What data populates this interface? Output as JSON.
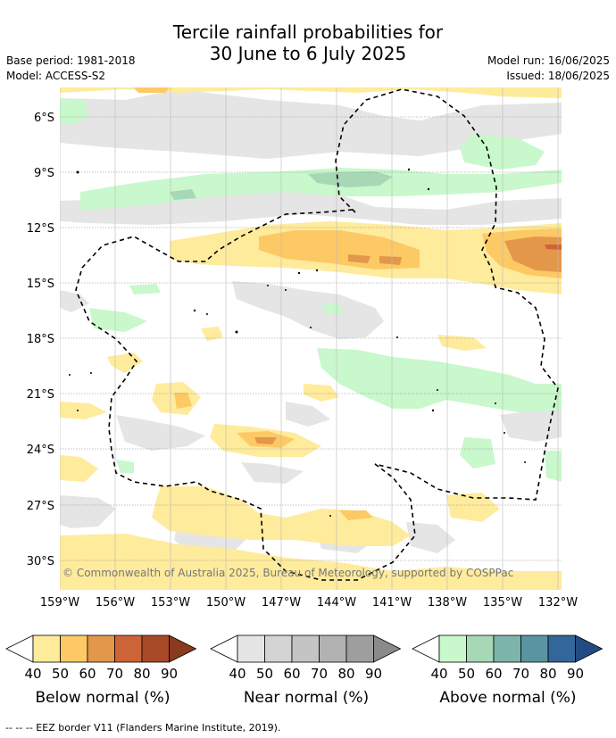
{
  "title": {
    "line1": "Tercile rainfall probabilities for",
    "line2": "30 June to 6 July 2025"
  },
  "meta": {
    "base_period": "Base period: 1981-2018",
    "model": "Model: ACCESS-S2",
    "model_run": "Model run: 16/06/2025",
    "issued": "Issued: 18/06/2025"
  },
  "map": {
    "lat_labels": [
      "6°S",
      "9°S",
      "12°S",
      "15°S",
      "18°S",
      "21°S",
      "24°S",
      "27°S",
      "30°S"
    ],
    "lon_labels": [
      "159°W",
      "156°W",
      "153°W",
      "150°W",
      "147°W",
      "144°W",
      "141°W",
      "138°W",
      "135°W",
      "132°W"
    ],
    "copyright": "© Commonwealth of Australia 2025, Bureau of Meteorology, supported by COSPPac"
  },
  "legend": {
    "ticks": [
      "40",
      "50",
      "60",
      "70",
      "80",
      "90"
    ],
    "below": {
      "title": "Below normal (%)",
      "colors": [
        "#ffeb9c",
        "#fdc965",
        "#e3974b",
        "#cd6438",
        "#a84a27",
        "#8a3a1e"
      ]
    },
    "near": {
      "title": "Near normal (%)",
      "colors": [
        "#e5e5e5",
        "#d4d4d4",
        "#c4c4c4",
        "#b2b2b2",
        "#9e9e9e",
        "#8a8a8a"
      ]
    },
    "above": {
      "title": "Above normal (%)",
      "colors": [
        "#c8f8cb",
        "#a6d8b6",
        "#7db5ac",
        "#5a94a3",
        "#336699",
        "#234b83"
      ]
    }
  },
  "footer": {
    "eez_note": "--  --  -- EEZ border V11 (Flanders Marine Institute, 2019)."
  }
}
